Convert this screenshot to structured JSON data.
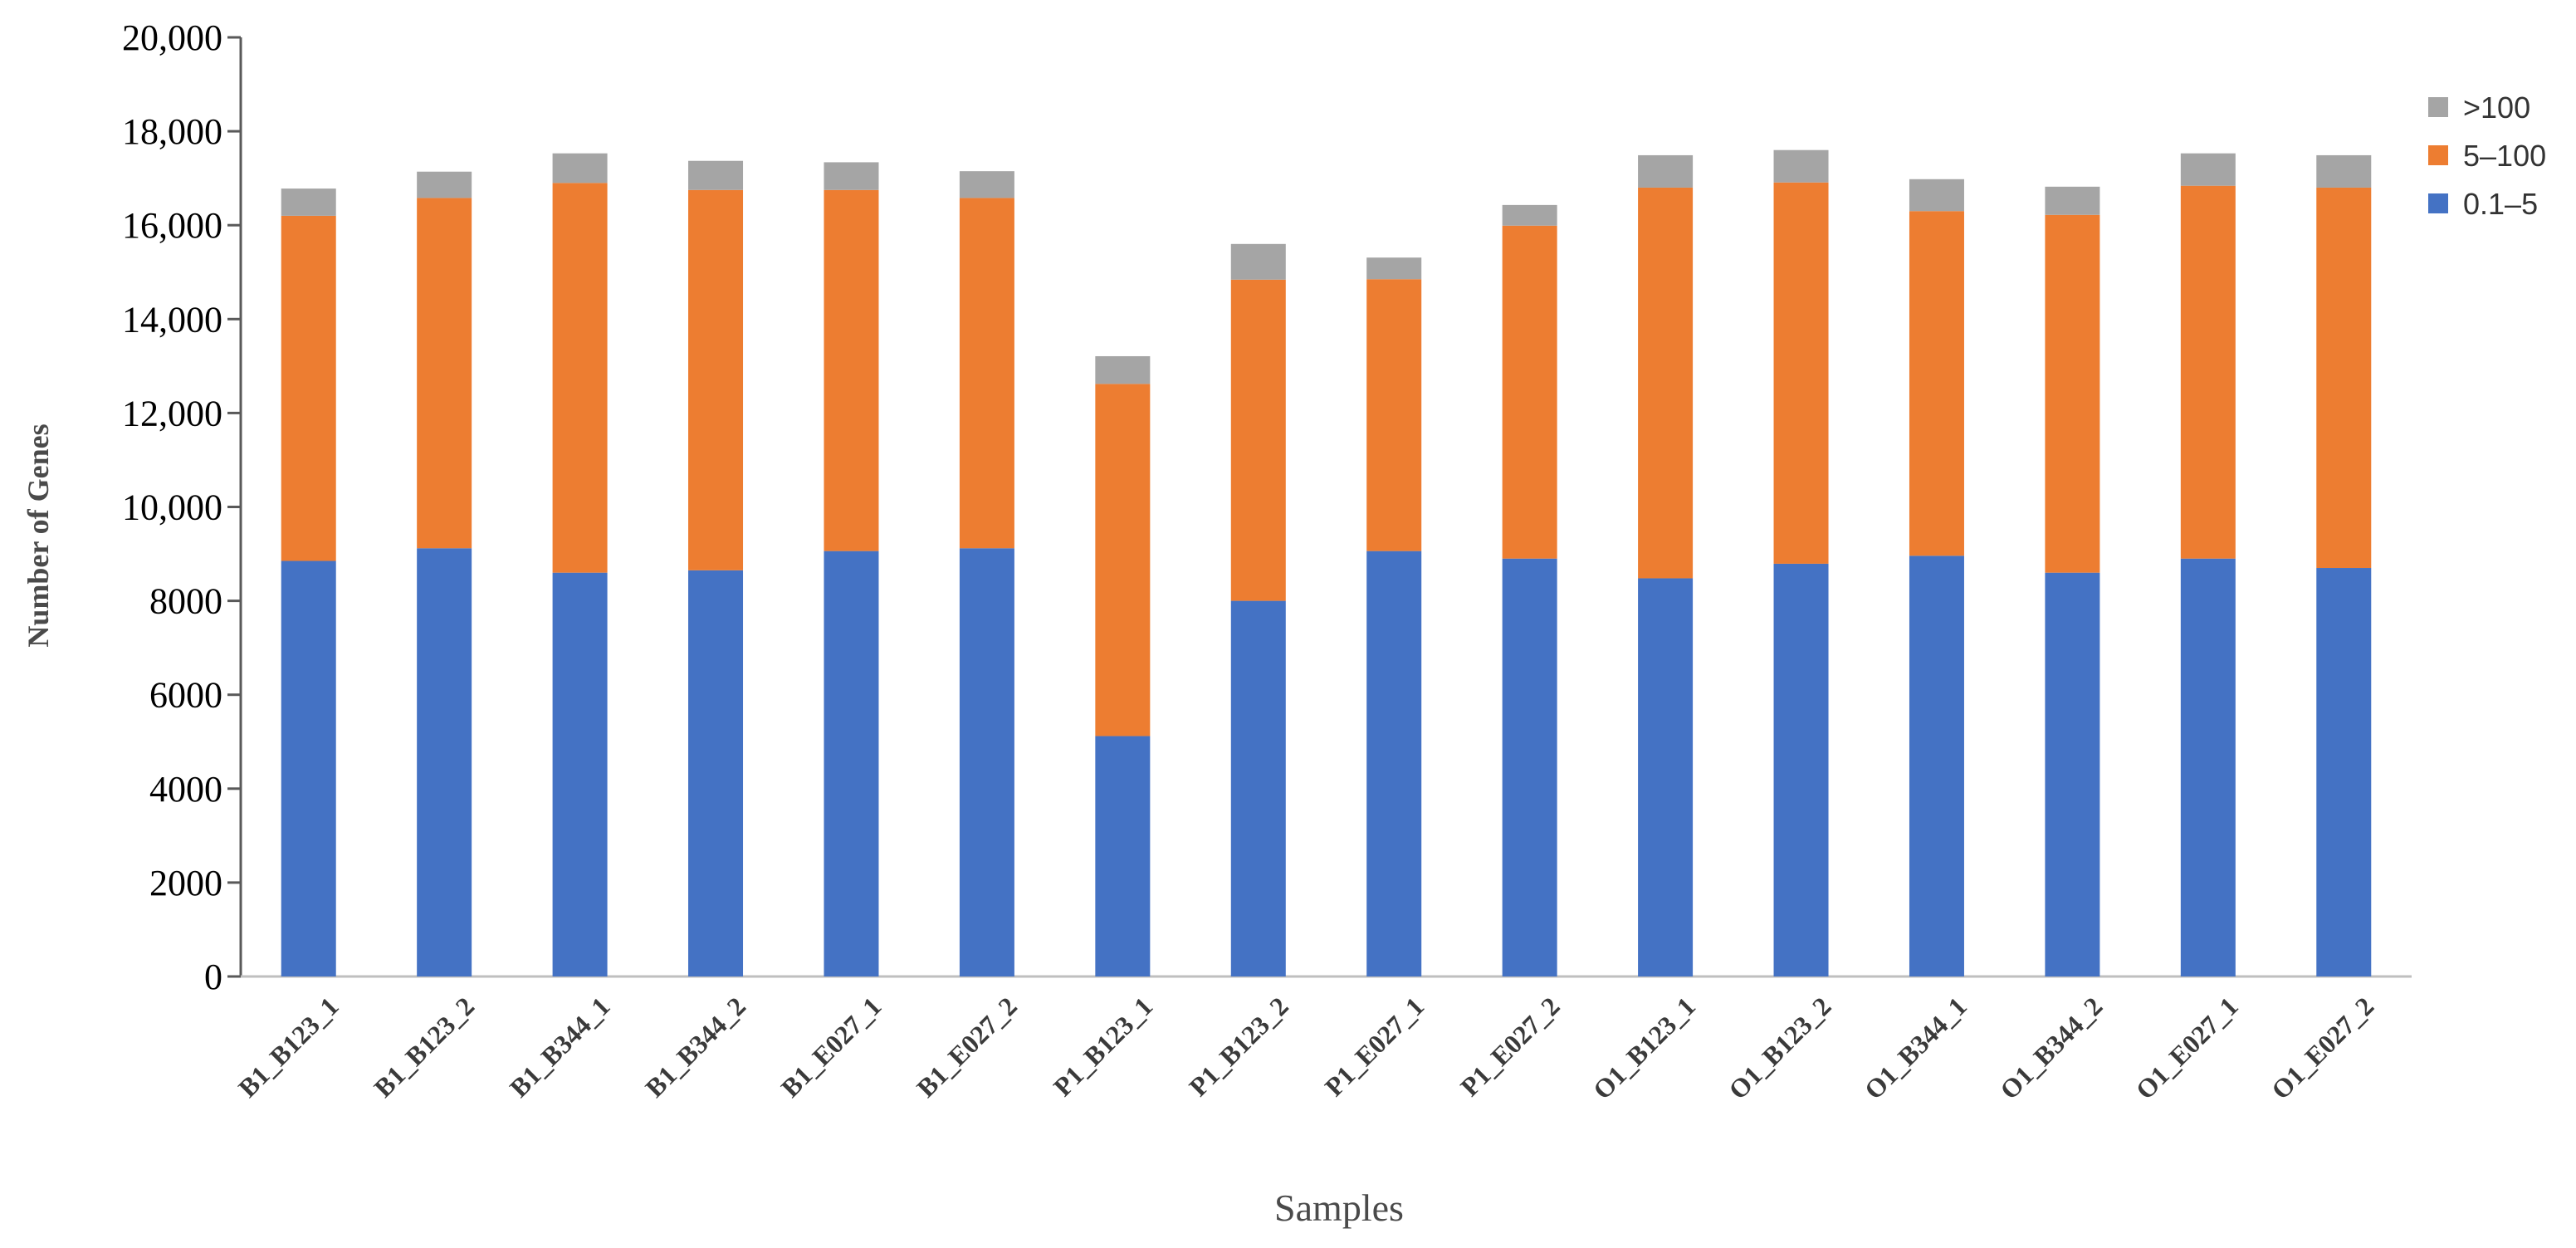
{
  "chart_data": {
    "type": "bar",
    "stacked": true,
    "title": "",
    "xlabel": "Samples",
    "ylabel": "Number of Genes",
    "ylim": [
      0,
      20000
    ],
    "yticks": [
      0,
      2000,
      4000,
      6000,
      8000,
      10000,
      12000,
      14000,
      16000,
      18000,
      20000
    ],
    "ytick_labels": [
      "0",
      "2000",
      "4000",
      "6000",
      "8000",
      "10,000",
      "12,000",
      "14,000",
      "16,000",
      "18,000",
      "20,000"
    ],
    "grid": false,
    "legend_position": "top-right",
    "categories": [
      "B1_B123_1",
      "B1_B123_2",
      "B1_B344_1",
      "B1_B344_2",
      "B1_E027_1",
      "B1_E027_2",
      "P1_B123_1",
      "P1_B123_2",
      "P1_E027_1",
      "P1_E027_2",
      "O1_B123_1",
      "O1_B123_2",
      "O1_B344_1",
      "O1_B344_2",
      "O1_E027_1",
      "O1_E027_2"
    ],
    "series": [
      {
        "name": "0.1–5",
        "color": "#4472C4",
        "values": [
          8850,
          9120,
          8600,
          8650,
          9060,
          9120,
          5120,
          8000,
          9060,
          8900,
          8480,
          8790,
          8960,
          8600,
          8900,
          8700
        ]
      },
      {
        "name": "5–100",
        "color": "#ED7D31",
        "values": [
          7350,
          7460,
          8300,
          8100,
          7690,
          7460,
          7500,
          6840,
          5790,
          7090,
          8320,
          8120,
          7340,
          7620,
          7940,
          8100
        ]
      },
      {
        "name": ">100",
        "color": "#A5A5A5",
        "values": [
          580,
          560,
          630,
          620,
          590,
          570,
          590,
          760,
          460,
          440,
          690,
          690,
          680,
          600,
          690,
          690
        ]
      }
    ],
    "legend_order": [
      ">100",
      "5–100",
      "0.1–5"
    ]
  }
}
